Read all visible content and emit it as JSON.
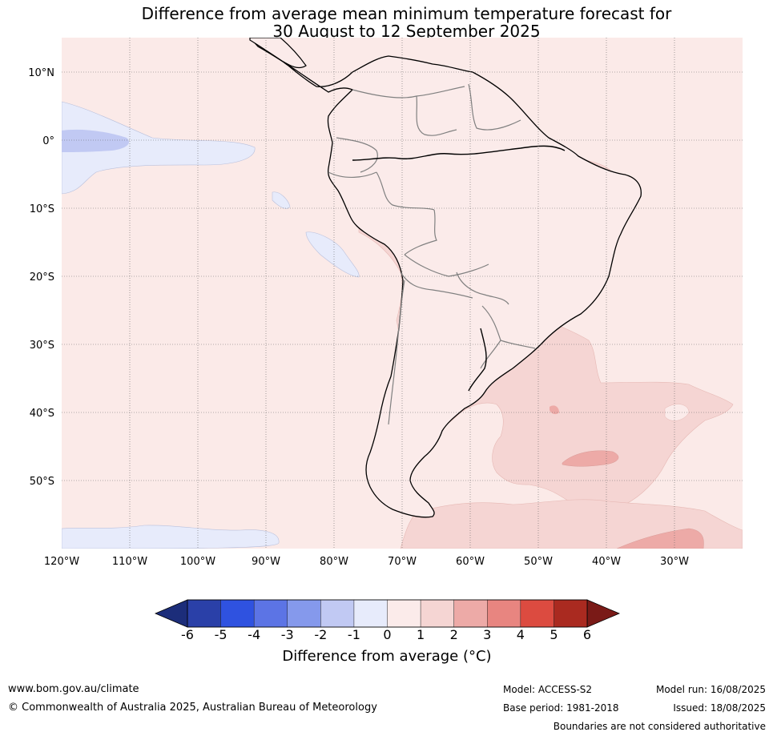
{
  "title": {
    "line1": "Difference from average mean minimum temperature forecast for",
    "line2": "30 August to 12 September 2025"
  },
  "map": {
    "lat_labels": [
      "10°N",
      "0°",
      "10°S",
      "20°S",
      "30°S",
      "40°S",
      "50°S"
    ],
    "lon_labels": [
      "120°W",
      "110°W",
      "100°W",
      "90°W",
      "80°W",
      "70°W",
      "60°W",
      "50°W",
      "40°W",
      "30°W"
    ],
    "background_color": "#fbeae8",
    "land_color": "#fcebe9"
  },
  "colorbar": {
    "ticks": [
      "-6",
      "-5",
      "-4",
      "-3",
      "-2",
      "-1",
      "0",
      "1",
      "2",
      "3",
      "4",
      "5",
      "6"
    ],
    "colors": [
      "#2a40a8",
      "#2f52e0",
      "#5c74e5",
      "#8599ec",
      "#c1c9f3",
      "#e7ebfb",
      "#fbebea",
      "#f5d5d3",
      "#edaaa7",
      "#e88580",
      "#dc4b40",
      "#aa2a20"
    ],
    "low_extend_color": "#1c2d7a",
    "high_extend_color": "#7a1a17",
    "label": "Difference from average (°C)"
  },
  "footer": {
    "url": "www.bom.gov.au/climate",
    "copyright": "© Commonwealth of Australia 2025, Australian Bureau of Meteorology",
    "model": "Model: ACCESS-S2",
    "base_period": "Base period: 1981-2018",
    "model_run": "Model run: 16/08/2025",
    "issued": "Issued: 18/08/2025",
    "disclaimer": "Boundaries are not considered authoritative"
  }
}
